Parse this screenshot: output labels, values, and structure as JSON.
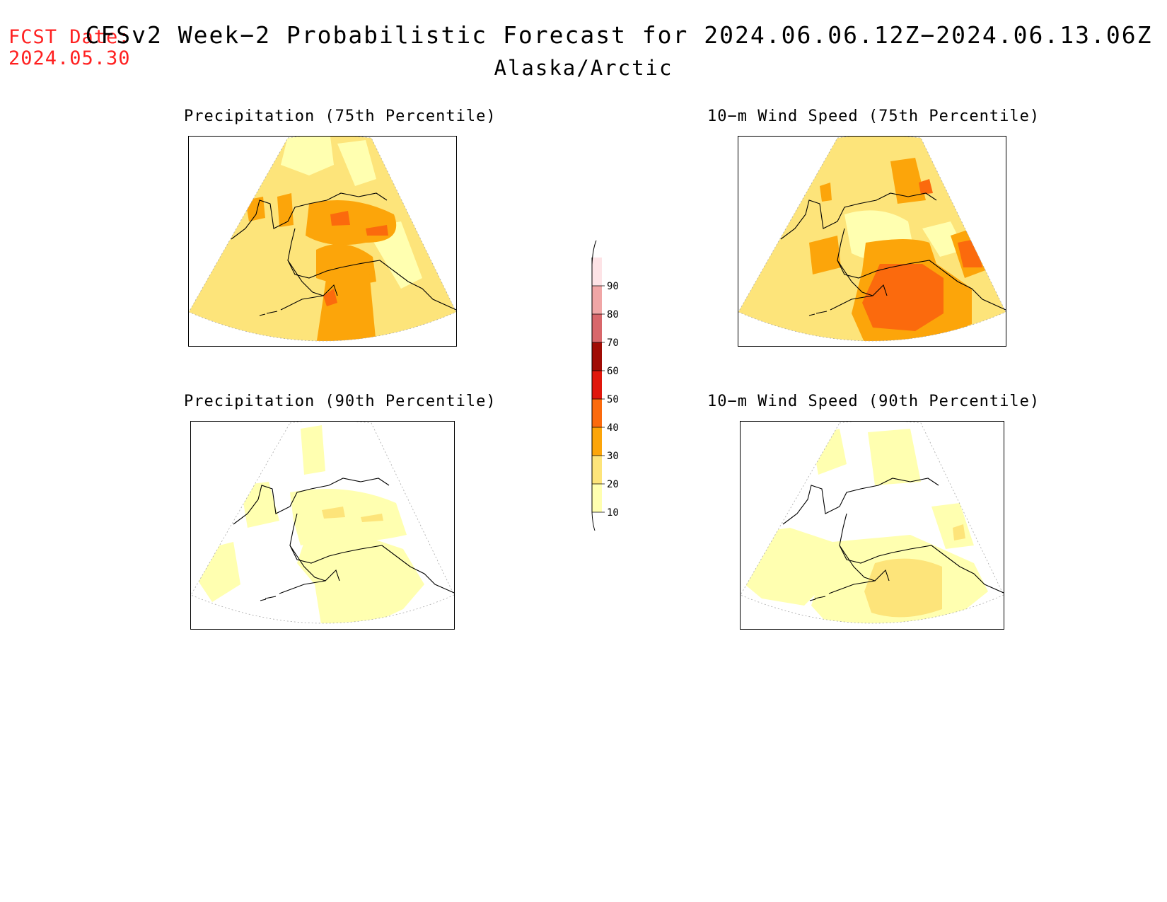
{
  "fcst": {
    "label": "FCST Date:",
    "date": "2024.05.30",
    "color": "#ff2020"
  },
  "title": {
    "line1": "CFSv2 Week−2 Probabilistic Forecast for 2024.06.06.12Z−2024.06.13.06Z",
    "line2": "Alaska/Arctic"
  },
  "panels": [
    {
      "id": "precip75",
      "title": "Precipitation (75th Percentile)"
    },
    {
      "id": "wind75",
      "title": "10−m Wind Speed (75th Percentile)"
    },
    {
      "id": "precip90",
      "title": "Precipitation (90th Percentile)"
    },
    {
      "id": "wind90",
      "title": "10−m Wind Speed (90th Percentile)"
    }
  ],
  "colorbar": {
    "ticks": [
      "10",
      "20",
      "30",
      "40",
      "50",
      "60",
      "70",
      "80",
      "90"
    ],
    "colors": [
      "#ffffb0",
      "#fde47a",
      "#fca50a",
      "#fb6a0d",
      "#e0170c",
      "#a00c05",
      "#d8676b",
      "#f0a6a6",
      "#fde3e6"
    ]
  }
}
